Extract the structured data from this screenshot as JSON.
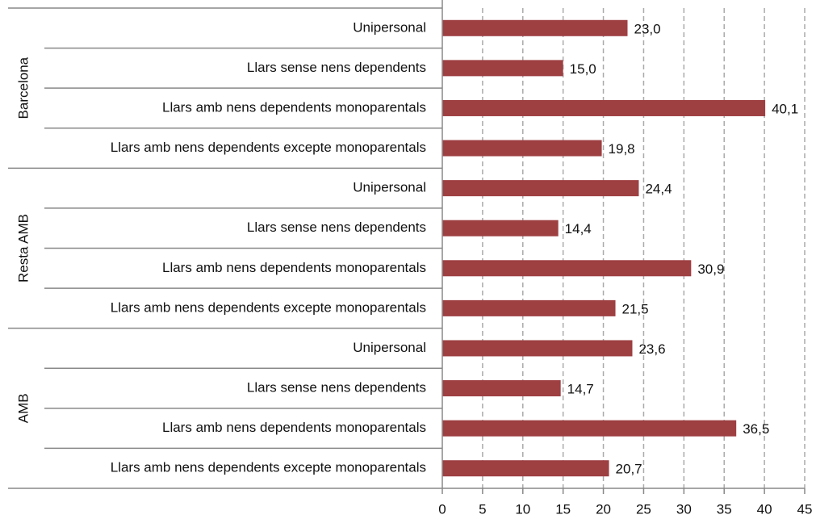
{
  "chart_data": {
    "type": "bar",
    "orientation": "horizontal",
    "color": "#9e3f42",
    "grid": true,
    "xlim": [
      0,
      45
    ],
    "xticks": [
      0,
      5,
      10,
      15,
      20,
      25,
      30,
      35,
      40,
      45
    ],
    "groups": [
      {
        "name": "Barcelona",
        "categories": [
          "Unipersonal",
          "Llars sense nens dependents",
          "Llars amb nens dependents monoparentals",
          "Llars amb nens dependents excepte monoparentals"
        ],
        "values": [
          23.0,
          15.0,
          40.1,
          19.8
        ],
        "value_labels": [
          "23,0",
          "15,0",
          "40,1",
          "19,8"
        ]
      },
      {
        "name": "Resta AMB",
        "categories": [
          "Unipersonal",
          "Llars sense nens dependents",
          "Llars amb nens dependents monoparentals",
          "Llars amb nens dependents excepte monoparentals"
        ],
        "values": [
          24.4,
          14.4,
          30.9,
          21.5
        ],
        "value_labels": [
          "24,4",
          "14,4",
          "30,9",
          "21,5"
        ]
      },
      {
        "name": "AMB",
        "categories": [
          "Unipersonal",
          "Llars sense nens dependents",
          "Llars amb nens dependents monoparentals",
          "Llars amb nens dependents excepte monoparentals"
        ],
        "values": [
          23.6,
          14.7,
          36.5,
          20.7
        ],
        "value_labels": [
          "23,6",
          "14,7",
          "36,5",
          "20,7"
        ]
      }
    ]
  }
}
